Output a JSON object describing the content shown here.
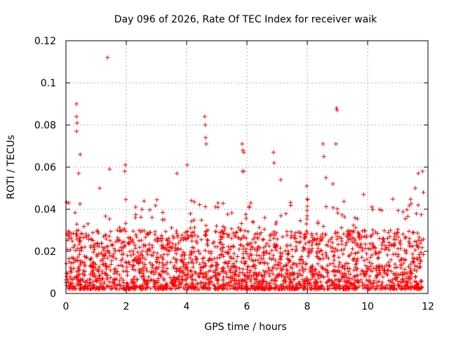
{
  "chart_data": {
    "type": "scatter",
    "title": "Day 096 of 2026, Rate Of TEC Index for receiver waik",
    "xlabel": "GPS time / hours",
    "ylabel": "ROTI / TECUs",
    "xlim": [
      0,
      12
    ],
    "ylim": [
      0,
      0.12
    ],
    "xticks": [
      0,
      2,
      4,
      6,
      8,
      10,
      12
    ],
    "xtick_labels": [
      "0",
      "2",
      "4",
      "6",
      "8",
      "10",
      "12"
    ],
    "yticks": [
      0,
      0.02,
      0.04,
      0.06,
      0.08,
      0.1,
      0.12
    ],
    "ytick_labels": [
      "0",
      "0.02",
      "0.04",
      "0.06",
      "0.08",
      "0.1",
      "0.12"
    ],
    "grid": true,
    "marker": "+",
    "color": "#ff0000",
    "series": [
      {
        "name": "ROTI",
        "x_range": [
          0.0,
          11.85
        ],
        "typical_range": [
          0.002,
          0.03
        ],
        "notable_points": [
          [
            1.38,
            0.112
          ],
          [
            0.35,
            0.09
          ],
          [
            0.35,
            0.084
          ],
          [
            0.37,
            0.081
          ],
          [
            0.35,
            0.077
          ],
          [
            8.97,
            0.088
          ],
          [
            8.99,
            0.087
          ],
          [
            4.6,
            0.084
          ],
          [
            4.62,
            0.08
          ],
          [
            4.63,
            0.074
          ],
          [
            4.65,
            0.071
          ],
          [
            8.52,
            0.071
          ],
          [
            8.95,
            0.071
          ],
          [
            5.84,
            0.071
          ],
          [
            5.86,
            0.068
          ],
          [
            5.9,
            0.067
          ],
          [
            6.88,
            0.067
          ],
          [
            6.9,
            0.062
          ],
          [
            0.47,
            0.066
          ],
          [
            4.02,
            0.061
          ],
          [
            1.97,
            0.061
          ],
          [
            11.82,
            0.058
          ],
          [
            1.45,
            0.059
          ],
          [
            5.9,
            0.058
          ],
          [
            1.95,
            0.058
          ],
          [
            11.68,
            0.057
          ],
          [
            0.42,
            0.057
          ],
          [
            3.68,
            0.057
          ],
          [
            5.85,
            0.058
          ],
          [
            8.55,
            0.065
          ],
          [
            8.62,
            0.055
          ],
          [
            11.85,
            0.048
          ],
          [
            1.12,
            0.05
          ],
          [
            0.09,
            0.043
          ],
          [
            7.98,
            0.051
          ],
          [
            8.85,
            0.052
          ],
          [
            9.87,
            0.047
          ],
          [
            6.13,
            0.043
          ],
          [
            7.12,
            0.054
          ],
          [
            11.58,
            0.05
          ]
        ]
      }
    ]
  }
}
